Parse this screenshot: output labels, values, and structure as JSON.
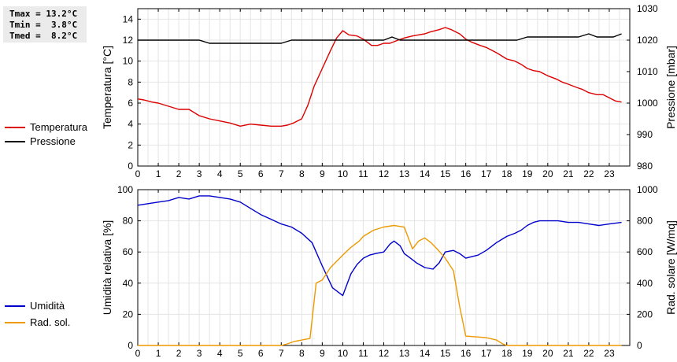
{
  "stats": {
    "tmax": "Tmax = 13.2°C",
    "tmin": "Tmin =  3.8°C",
    "tmed": "Tmed =  8.2°C"
  },
  "chart_data": [
    {
      "type": "line",
      "xlim": [
        0,
        24
      ],
      "x_ticks": [
        "0",
        "1",
        "2",
        "3",
        "4",
        "5",
        "6",
        "7",
        "8",
        "9",
        "10",
        "11",
        "12",
        "13",
        "14",
        "15",
        "16",
        "17",
        "18",
        "19",
        "20",
        "21",
        "22",
        "23"
      ],
      "ylabel": "Temperatura [°C]",
      "ylim": [
        0,
        15
      ],
      "y_ticks": [
        "0",
        "2",
        "4",
        "6",
        "8",
        "10",
        "12",
        "14"
      ],
      "y2label": "Pressione [mbar]",
      "y2lim": [
        980,
        1030
      ],
      "y2_ticks": [
        "980",
        "990",
        "1000",
        "1010",
        "1020",
        "1030"
      ],
      "grid": true,
      "legend_position": "left",
      "series": [
        {
          "name": "Temperatura",
          "color": "#dd0000",
          "axis": "left",
          "x": [
            0,
            0.3,
            0.7,
            1,
            1.5,
            2,
            2.5,
            3,
            3.5,
            4,
            4.5,
            5,
            5.5,
            6,
            6.5,
            7,
            7.3,
            7.6,
            8,
            8.3,
            8.6,
            9,
            9.4,
            9.7,
            10,
            10.3,
            10.7,
            11,
            11.4,
            11.7,
            12,
            12.3,
            12.7,
            13,
            13.4,
            13.7,
            14,
            14.3,
            14.7,
            15,
            15.3,
            15.7,
            16,
            16.3,
            16.7,
            17,
            17.5,
            18,
            18.4,
            18.7,
            19,
            19.3,
            19.6,
            20,
            20.4,
            20.7,
            21,
            21.4,
            21.7,
            22,
            22.4,
            22.7,
            23,
            23.3,
            23.6
          ],
          "y": [
            6.4,
            6.3,
            6.1,
            6.0,
            5.7,
            5.4,
            5.4,
            4.8,
            4.5,
            4.3,
            4.1,
            3.8,
            4.0,
            3.9,
            3.8,
            3.8,
            3.9,
            4.1,
            4.5,
            5.8,
            7.6,
            9.3,
            11.0,
            12.2,
            12.9,
            12.5,
            12.4,
            12.1,
            11.5,
            11.5,
            11.7,
            11.7,
            12.0,
            12.2,
            12.4,
            12.5,
            12.6,
            12.8,
            13.0,
            13.2,
            13.0,
            12.6,
            12.1,
            11.8,
            11.5,
            11.3,
            10.8,
            10.2,
            10.0,
            9.7,
            9.3,
            9.1,
            9.0,
            8.6,
            8.3,
            8.0,
            7.8,
            7.5,
            7.3,
            7.0,
            6.8,
            6.8,
            6.5,
            6.2,
            6.1
          ]
        },
        {
          "name": "Pressione",
          "color": "#000000",
          "axis": "right",
          "x": [
            0,
            1,
            2,
            3,
            3.5,
            4,
            5,
            6,
            7,
            7.5,
            8,
            9,
            10,
            11,
            12,
            12.4,
            12.8,
            13,
            14,
            15,
            16,
            17,
            18,
            18.5,
            19,
            20,
            21,
            21.5,
            22,
            22.4,
            22.8,
            23.2,
            23.6
          ],
          "y": [
            1020,
            1020,
            1020,
            1020,
            1019,
            1019,
            1019,
            1019,
            1019,
            1020,
            1020,
            1020,
            1020,
            1020,
            1020,
            1021,
            1020,
            1020,
            1020,
            1020,
            1020,
            1020,
            1020,
            1020,
            1021,
            1021,
            1021,
            1021,
            1022,
            1021,
            1021,
            1021,
            1022
          ]
        }
      ]
    },
    {
      "type": "line",
      "xlim": [
        0,
        24
      ],
      "x_ticks": [
        "0",
        "1",
        "2",
        "3",
        "4",
        "5",
        "6",
        "7",
        "8",
        "9",
        "10",
        "11",
        "12",
        "13",
        "14",
        "15",
        "16",
        "17",
        "18",
        "19",
        "20",
        "21",
        "22",
        "23"
      ],
      "ylabel": "Umidità relativa [%]",
      "ylim": [
        0,
        100
      ],
      "y_ticks": [
        "0",
        "20",
        "40",
        "60",
        "80",
        "100"
      ],
      "y2label": "Rad. solare [W/mq]",
      "y2lim": [
        0,
        1000
      ],
      "y2_ticks": [
        "0",
        "200",
        "400",
        "600",
        "800",
        "1000"
      ],
      "grid": true,
      "legend_position": "left",
      "series": [
        {
          "name": "Umidità",
          "color": "#0000cc",
          "axis": "left",
          "x": [
            0,
            0.5,
            1,
            1.5,
            2,
            2.5,
            3,
            3.5,
            4,
            4.5,
            5,
            5.5,
            6,
            6.5,
            7,
            7.5,
            8,
            8.5,
            9,
            9.5,
            10,
            10.4,
            10.7,
            11,
            11.3,
            11.6,
            12,
            12.3,
            12.5,
            12.8,
            13,
            13.3,
            13.6,
            14,
            14.4,
            14.7,
            15,
            15.4,
            15.7,
            16,
            16.3,
            16.6,
            17,
            17.5,
            18,
            18.4,
            18.7,
            19,
            19.3,
            19.6,
            20,
            20.5,
            21,
            21.5,
            22,
            22.5,
            23,
            23.6
          ],
          "y": [
            90,
            91,
            92,
            93,
            95,
            94,
            96,
            96,
            95,
            94,
            92,
            88,
            84,
            81,
            78,
            76,
            72,
            66,
            51,
            37,
            32,
            46,
            52,
            56,
            58,
            59,
            60,
            65,
            67,
            64,
            59,
            56,
            53,
            50,
            49,
            53,
            60,
            61,
            59,
            56,
            57,
            58,
            61,
            66,
            70,
            72,
            74,
            77,
            79,
            80,
            80,
            80,
            79,
            79,
            78,
            77,
            78,
            79
          ]
        },
        {
          "name": "Rad. sol.",
          "color": "#ee9900",
          "axis": "right",
          "x": [
            0,
            1,
            2,
            3,
            4,
            5,
            6,
            7,
            7.3,
            7.6,
            8,
            8.4,
            8.7,
            9,
            9.4,
            10,
            10.4,
            10.8,
            11,
            11.5,
            12,
            12.5,
            13,
            13.4,
            13.7,
            14,
            14.3,
            14.6,
            15,
            15.4,
            15.7,
            16,
            16.5,
            17,
            17.5,
            17.8,
            18,
            19,
            20,
            21,
            22,
            23,
            23.6
          ],
          "y": [
            0,
            0,
            0,
            0,
            0,
            0,
            0,
            0,
            10,
            25,
            35,
            45,
            400,
            420,
            500,
            580,
            630,
            670,
            700,
            740,
            760,
            770,
            760,
            620,
            670,
            690,
            660,
            620,
            560,
            480,
            250,
            60,
            55,
            50,
            35,
            10,
            0,
            0,
            0,
            0,
            0,
            0,
            0
          ]
        }
      ]
    }
  ]
}
